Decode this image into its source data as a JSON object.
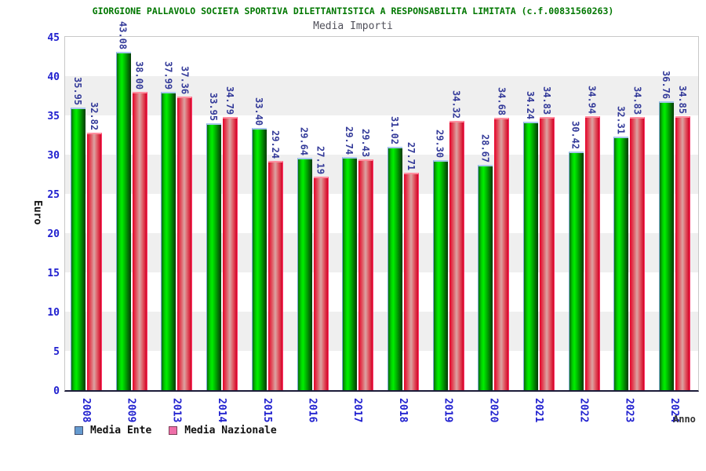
{
  "chart_data": {
    "type": "bar",
    "title": "GIORGIONE PALLAVOLO SOCIETA SPORTIVA DILETTANTISTICA A RESPONSABILITA LIMITATA (c.f.00831560263)",
    "subtitle": "Media Importi",
    "xlabel": "Anno",
    "ylabel": "Euro",
    "ylim": [
      0,
      45
    ],
    "yticks": [
      0,
      5,
      10,
      15,
      20,
      25,
      30,
      35,
      40,
      45
    ],
    "grid": "alternating horizontal bands every 5 units",
    "legend_position": "bottom-left",
    "categories": [
      "2008",
      "2009",
      "2013",
      "2014",
      "2015",
      "2016",
      "2017",
      "2018",
      "2019",
      "2020",
      "2021",
      "2022",
      "2023",
      "2024"
    ],
    "series": [
      {
        "name": "Media Ente",
        "values": [
          35.95,
          43.08,
          37.99,
          33.95,
          33.4,
          29.64,
          29.74,
          31.02,
          29.3,
          28.67,
          34.24,
          30.42,
          32.31,
          36.76
        ],
        "value_labels": [
          "35.95",
          "43.08",
          "37.99",
          "33.95",
          "33.40",
          "29.64",
          "29.74",
          "31.02",
          "29.30",
          "28.67",
          "34.24",
          "30.42",
          "32.31",
          "36.76"
        ]
      },
      {
        "name": "Media Nazionale",
        "values": [
          32.82,
          38.0,
          37.36,
          34.79,
          29.24,
          27.19,
          29.43,
          27.71,
          34.32,
          34.68,
          34.83,
          34.94,
          34.83,
          34.85
        ],
        "value_labels": [
          "32.82",
          "38.00",
          "37.36",
          "34.79",
          "29.24",
          "27.19",
          "29.43",
          "27.71",
          "34.32",
          "34.68",
          "34.83",
          "34.94",
          "34.83",
          "34.85"
        ]
      }
    ],
    "legend": [
      {
        "label": "Media Ente",
        "swatch": "#659bd0",
        "swatch_border": "#44506e"
      },
      {
        "label": "Media Nazionale",
        "swatch": "#ee6fa8",
        "swatch_border": "#7e4058"
      }
    ]
  },
  "colors": {
    "title": "#007700",
    "subtitle": "#50505a",
    "axis_text": "#2020cf",
    "value_label": "#333a99",
    "band_gray": "#efefef",
    "frame": "#c8c8c8",
    "axis_line": "#1c1c3a",
    "bar1_gradient": [
      "#0a6e0a",
      "#00d400",
      "#00ee00",
      "#00a800",
      "#055905",
      "#033f03"
    ],
    "bar1_border": "#7fa8d8",
    "bar1_cap": "#a8c8ec",
    "bar2_gradient": [
      "#e60028",
      "#e05a64",
      "#dca3a3",
      "#e05a64",
      "#d40024"
    ],
    "bar2_border": "#ff3b6e",
    "bar2_cap": "#ff8fa0"
  }
}
